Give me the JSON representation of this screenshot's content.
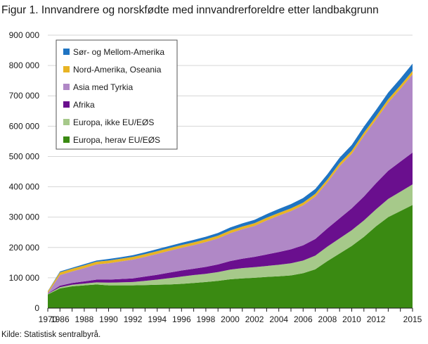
{
  "title": "Figur 1. Innvandrere og norskfødte med innvandrerforeldre etter landbakgrunn",
  "source": "Kilde: Statistisk sentralbyrå.",
  "chart_data": {
    "type": "area",
    "stacked": true,
    "title": "Figur 1. Innvandrere og norskfødte med innvandrerforeldre etter landbakgrunn",
    "xlabel": "",
    "ylabel": "",
    "ylim": [
      0,
      900000
    ],
    "yticks": [
      0,
      100000,
      200000,
      300000,
      400000,
      500000,
      600000,
      700000,
      800000,
      900000
    ],
    "ytick_labels": [
      "0",
      "100 000",
      "200 000",
      "300 000",
      "400 000",
      "500 000",
      "600 000",
      "700 000",
      "800 000",
      "900 000"
    ],
    "xtick_labels": [
      "1970",
      "1986",
      "1988",
      "1990",
      "1992",
      "1994",
      "1996",
      "1998",
      "2000",
      "2002",
      "2004",
      "2006",
      "2008",
      "2010",
      "2012",
      "2015"
    ],
    "grid": "horizontal",
    "legend_position": "top-left",
    "x": [
      "1970",
      "1986",
      "1987",
      "1988",
      "1989",
      "1990",
      "1991",
      "1992",
      "1993",
      "1994",
      "1995",
      "1996",
      "1997",
      "1998",
      "1999",
      "2000",
      "2001",
      "2002",
      "2003",
      "2004",
      "2005",
      "2006",
      "2007",
      "2008",
      "2009",
      "2010",
      "2011",
      "2012",
      "2013",
      "2014",
      "2015"
    ],
    "series": [
      {
        "name": "Europa, herav EU/EØS",
        "color": "#3a8a12",
        "values": [
          45000,
          65000,
          72000,
          75000,
          78000,
          75000,
          75000,
          75000,
          76000,
          77000,
          78000,
          80000,
          83000,
          86000,
          90000,
          95000,
          98000,
          100000,
          103000,
          105000,
          108000,
          115000,
          128000,
          155000,
          180000,
          205000,
          235000,
          270000,
          300000,
          320000,
          340000
        ]
      },
      {
        "name": "Europa, ikke EU/EØS",
        "color": "#a6c98a",
        "values": [
          2000,
          4000,
          5000,
          6000,
          7000,
          9000,
          10000,
          11000,
          14000,
          17000,
          21000,
          24000,
          26000,
          27000,
          29000,
          32000,
          34000,
          35000,
          36000,
          38000,
          40000,
          42000,
          45000,
          48000,
          50000,
          52000,
          54000,
          56000,
          60000,
          64000,
          68000
        ]
      },
      {
        "name": "Afrika",
        "color": "#6a0f8e",
        "values": [
          1000,
          5000,
          6000,
          7000,
          9000,
          10000,
          11000,
          12000,
          14000,
          16000,
          18000,
          20000,
          21000,
          23000,
          25000,
          28000,
          31000,
          34000,
          38000,
          42000,
          46000,
          50000,
          55000,
          60000,
          66000,
          72000,
          79000,
          86000,
          93000,
          99000,
          105000
        ]
      },
      {
        "name": "Asia med Tyrkia",
        "color": "#b088c6",
        "values": [
          2000,
          35000,
          38000,
          44000,
          50000,
          54000,
          58000,
          62000,
          65000,
          69000,
          72000,
          75000,
          78000,
          82000,
          86000,
          92000,
          97000,
          102000,
          112000,
          120000,
          126000,
          132000,
          140000,
          152000,
          172000,
          180000,
          200000,
          210000,
          225000,
          240000,
          258000
        ]
      },
      {
        "name": "Nord-Amerika, Oseania",
        "color": "#e8b424",
        "values": [
          5000,
          9000,
          9000,
          9000,
          9000,
          9000,
          9000,
          9000,
          9000,
          9000,
          9000,
          9000,
          9000,
          9000,
          9000,
          9000,
          9000,
          9000,
          9000,
          9000,
          9000,
          9000,
          9000,
          9500,
          10000,
          10000,
          10500,
          10500,
          11000,
          11000,
          11000
        ]
      },
      {
        "name": "Sør- og Mellom-Amerika",
        "color": "#1f74c2",
        "values": [
          1000,
          3000,
          3000,
          4000,
          4000,
          5000,
          5000,
          5500,
          6000,
          6500,
          7000,
          7500,
          8000,
          8500,
          9000,
          10000,
          10500,
          11000,
          12000,
          13000,
          14000,
          15000,
          16000,
          17000,
          18000,
          19000,
          20000,
          21000,
          22000,
          23000,
          24000
        ]
      }
    ]
  }
}
